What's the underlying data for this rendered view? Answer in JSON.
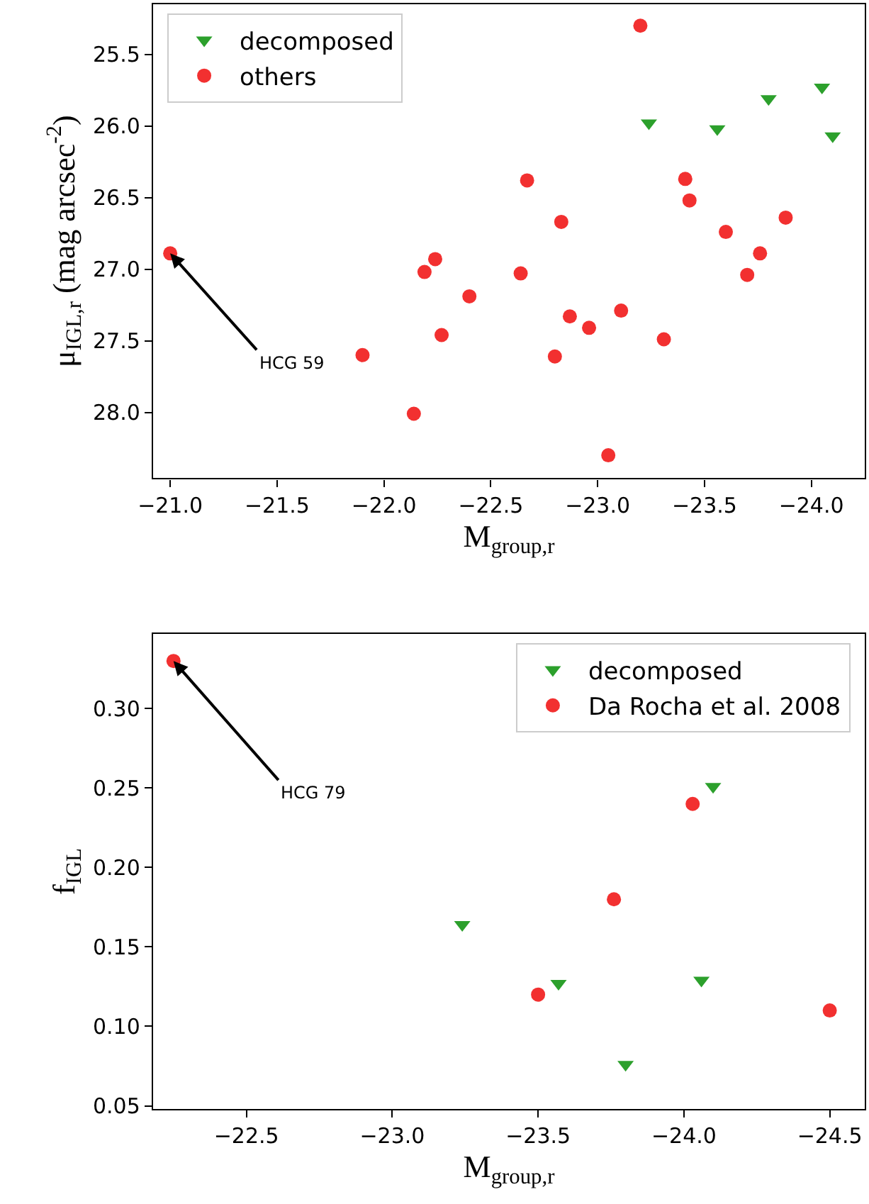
{
  "chart_data": [
    {
      "type": "scatter",
      "xlabel": "M$_{group,r}$",
      "ylabel": "μ$_{IGL,r}$ (mag arcsec$^{-2}$)",
      "xlim": [
        -20.92,
        -24.25
      ],
      "ylim": [
        28.46,
        25.15
      ],
      "xticks": [
        {
          "value": -21,
          "label": "−21.0"
        },
        {
          "value": -21.5,
          "label": "−21.5"
        },
        {
          "value": -22,
          "label": "−22.0"
        },
        {
          "value": -22.5,
          "label": "−22.5"
        },
        {
          "value": -23,
          "label": "−23.0"
        },
        {
          "value": -23.5,
          "label": "−23.5"
        },
        {
          "value": -24,
          "label": "−24.0"
        }
      ],
      "yticks": [
        {
          "value": 25.5,
          "label": "25.5"
        },
        {
          "value": 26,
          "label": "26.0"
        },
        {
          "value": 26.5,
          "label": "26.5"
        },
        {
          "value": 27,
          "label": "27.0"
        },
        {
          "value": 27.5,
          "label": "27.5"
        },
        {
          "value": 28,
          "label": "28.0"
        }
      ],
      "legend": "top left",
      "series": [
        {
          "name": "decomposed",
          "color": "#2ca02c",
          "marker": "triangle",
          "x": [
            -23.24,
            -23.56,
            -23.8,
            -24.05,
            -24.1
          ],
          "values": [
            25.98,
            26.02,
            25.81,
            25.73,
            26.07
          ]
        },
        {
          "name": "others",
          "color": "#f23030",
          "marker": "circle",
          "x": [
            -23.2,
            -21.0,
            -22.67,
            -22.83,
            -23.41,
            -23.43,
            -23.88,
            -23.6,
            -23.76,
            -23.7,
            -22.24,
            -22.19,
            -22.64,
            -22.4,
            -23.11,
            -22.87,
            -22.96,
            -22.27,
            -23.31,
            -21.9,
            -22.8,
            -22.14,
            -23.05
          ],
          "values": [
            25.3,
            26.89,
            26.38,
            26.67,
            26.37,
            26.52,
            26.64,
            26.74,
            26.89,
            27.04,
            26.93,
            27.02,
            27.03,
            27.19,
            27.29,
            27.33,
            27.41,
            27.46,
            27.49,
            27.6,
            27.61,
            28.01,
            28.3
          ]
        }
      ],
      "annotations": [
        {
          "text": "HCG 59",
          "x": -21.0,
          "y": 26.89
        }
      ]
    },
    {
      "type": "scatter",
      "xlabel": "M$_{group,r}$",
      "ylabel": "f$_{IGL}$",
      "xlim": [
        -22.18,
        -24.62
      ],
      "ylim": [
        0.048,
        0.347
      ],
      "xticks": [
        {
          "value": -22.5,
          "label": "−22.5"
        },
        {
          "value": -23,
          "label": "−23.0"
        },
        {
          "value": -23.5,
          "label": "−23.5"
        },
        {
          "value": -24,
          "label": "−24.0"
        },
        {
          "value": -24.5,
          "label": "−24.5"
        }
      ],
      "yticks": [
        {
          "value": 0.05,
          "label": "0.05"
        },
        {
          "value": 0.1,
          "label": "0.10"
        },
        {
          "value": 0.15,
          "label": "0.15"
        },
        {
          "value": 0.2,
          "label": "0.20"
        },
        {
          "value": 0.25,
          "label": "0.25"
        },
        {
          "value": 0.3,
          "label": "0.30"
        }
      ],
      "legend": "top right",
      "series": [
        {
          "name": "decomposed",
          "color": "#2ca02c",
          "marker": "triangle",
          "x": [
            -24.1,
            -23.24,
            -23.57,
            -24.06,
            -23.8
          ],
          "values": [
            0.251,
            0.164,
            0.127,
            0.129,
            0.076
          ]
        },
        {
          "name": "Da Rocha et al. 2008",
          "color": "#f23030",
          "marker": "circle",
          "x": [
            -22.25,
            -24.03,
            -23.76,
            -23.5,
            -24.5
          ],
          "values": [
            0.33,
            0.24,
            0.18,
            0.12,
            0.11
          ]
        }
      ],
      "annotations": [
        {
          "text": "HCG 79",
          "x": -22.25,
          "y": 0.33
        }
      ]
    }
  ]
}
